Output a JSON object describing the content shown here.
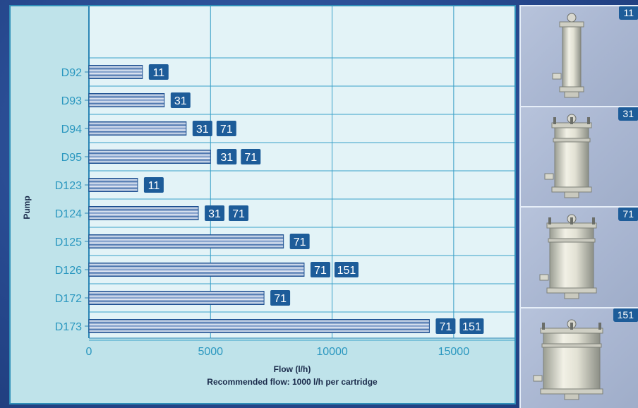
{
  "chart_data": {
    "type": "bar",
    "orientation": "horizontal",
    "categories": [
      "D92",
      "D93",
      "D94",
      "D95",
      "D123",
      "D124",
      "D125",
      "D126",
      "D172",
      "D173"
    ],
    "values": [
      2200,
      3100,
      4000,
      5000,
      2000,
      4500,
      8000,
      8850,
      7200,
      14000
    ],
    "cartridge_badges": [
      [
        "11"
      ],
      [
        "31"
      ],
      [
        "31",
        "71"
      ],
      [
        "31",
        "71"
      ],
      [
        "11"
      ],
      [
        "31",
        "71"
      ],
      [
        "71"
      ],
      [
        "71",
        "151"
      ],
      [
        "71"
      ],
      [
        "71",
        "151"
      ]
    ],
    "xlabel": "Flow (l/h)",
    "subtitle": "Recommended flow: 1000 l/h per cartridge",
    "ylabel": "Pump",
    "xlim": [
      0,
      17500
    ],
    "xticks": [
      0,
      5000,
      10000,
      15000
    ],
    "xtick_labels": [
      "0",
      "5000",
      "10000",
      "15000"
    ],
    "grid": true,
    "colors": {
      "bar_dark": "#1d4f91",
      "bar_light": "#e8edf6",
      "badge": "#1d5c99",
      "text": "#2a97bf",
      "panel": "#bfe3ea",
      "plot": "#e3f3f7",
      "grid": "#3aa0c8"
    }
  },
  "photos": [
    {
      "label": "11"
    },
    {
      "label": "31"
    },
    {
      "label": "71"
    },
    {
      "label": "151"
    }
  ]
}
